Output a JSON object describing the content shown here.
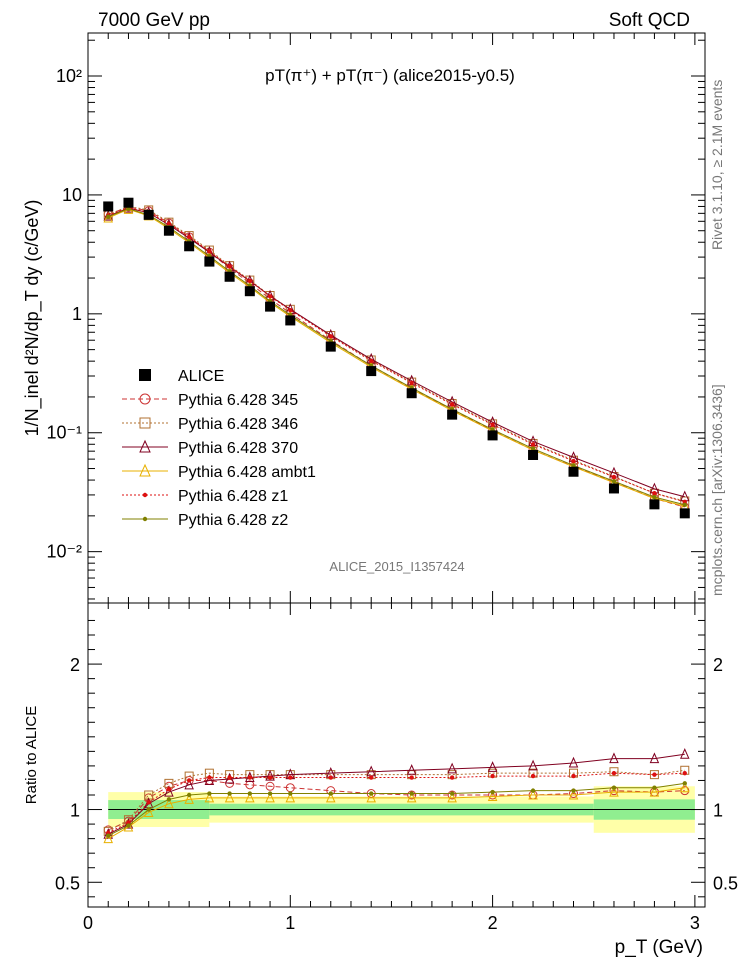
{
  "header": {
    "left": "7000 GeV pp",
    "right": "Soft QCD"
  },
  "side_labels": {
    "top": "Rivet 3.1.10, ≥ 2.1M events",
    "bottom": "mcplots.cern.ch [arXiv:1306.3436]"
  },
  "watermark": "ALICE_2015_I1357424",
  "chart_data": {
    "type": "scatter",
    "title": "pT(π⁺) + pT(π⁻) (alice2015-y0.5)",
    "xlabel": "p_T (GeV)",
    "ylabel": "1/N_inel d²N/dp_T dy (c/GeV)",
    "ratio_ylabel": "Ratio to ALICE",
    "xlim": [
      0,
      3.05
    ],
    "ylim": [
      0.0037,
      230
    ],
    "yscale": "log",
    "ratio_ylim": [
      0.33,
      2.42
    ],
    "x_ticks": [
      "0",
      "1",
      "2",
      "3"
    ],
    "y_ticks": [
      "10⁻²",
      "10⁻¹",
      "1",
      "10",
      "10²"
    ],
    "ratio_ticks": [
      "0.5",
      "1",
      "2"
    ],
    "legend_position": "left-middle",
    "x": [
      0.1,
      0.2,
      0.3,
      0.4,
      0.5,
      0.6,
      0.7,
      0.8,
      0.9,
      1.0,
      1.2,
      1.4,
      1.6,
      1.8,
      2.0,
      2.2,
      2.4,
      2.6,
      2.8,
      2.95
    ],
    "data": {
      "name": "ALICE",
      "values": [
        8.0,
        8.6,
        6.8,
        5.0,
        3.7,
        2.75,
        2.05,
        1.55,
        1.15,
        0.88,
        0.53,
        0.33,
        0.215,
        0.142,
        0.095,
        0.065,
        0.047,
        0.034,
        0.025,
        0.021
      ]
    },
    "band_edges": [
      0.1,
      0.6,
      2.5,
      3.0
    ],
    "band_inner": [
      0.065,
      0.04,
      0.07
    ],
    "band_outer": [
      0.12,
      0.09,
      0.16
    ],
    "series": [
      {
        "name": "Pythia 6.428 345",
        "color": "#cc3333",
        "marker": "circle",
        "dash": "5,3",
        "ratios": [
          0.86,
          0.92,
          1.08,
          1.16,
          1.2,
          1.2,
          1.18,
          1.17,
          1.16,
          1.15,
          1.13,
          1.11,
          1.1,
          1.1,
          1.1,
          1.1,
          1.11,
          1.13,
          1.12,
          1.13
        ]
      },
      {
        "name": "Pythia 6.428 346",
        "color": "#b07030",
        "marker": "square",
        "dash": "2,2",
        "ratios": [
          0.85,
          0.93,
          1.1,
          1.18,
          1.23,
          1.25,
          1.24,
          1.24,
          1.24,
          1.24,
          1.24,
          1.24,
          1.24,
          1.24,
          1.25,
          1.25,
          1.25,
          1.26,
          1.24,
          1.27
        ]
      },
      {
        "name": "Pythia 6.428 370",
        "color": "#800020",
        "marker": "triangle",
        "dash": "",
        "ratios": [
          0.83,
          0.9,
          1.04,
          1.12,
          1.17,
          1.2,
          1.21,
          1.22,
          1.23,
          1.24,
          1.25,
          1.26,
          1.27,
          1.28,
          1.29,
          1.3,
          1.32,
          1.35,
          1.35,
          1.38
        ]
      },
      {
        "name": "Pythia 6.428 ambt1",
        "color": "#e8b000",
        "marker": "triangle",
        "dash": "",
        "ratios": [
          0.8,
          0.88,
          0.98,
          1.04,
          1.07,
          1.08,
          1.08,
          1.08,
          1.08,
          1.08,
          1.08,
          1.08,
          1.08,
          1.08,
          1.09,
          1.1,
          1.1,
          1.12,
          1.12,
          1.15
        ]
      },
      {
        "name": "Pythia 6.428 z1",
        "color": "#dd1111",
        "marker": "dot",
        "dash": "2,2",
        "ratios": [
          0.84,
          0.91,
          1.05,
          1.14,
          1.2,
          1.22,
          1.22,
          1.22,
          1.22,
          1.22,
          1.22,
          1.22,
          1.22,
          1.22,
          1.23,
          1.23,
          1.23,
          1.25,
          1.24,
          1.25
        ]
      },
      {
        "name": "Pythia 6.428 z2",
        "color": "#808000",
        "marker": "dot",
        "dash": "",
        "ratios": [
          0.82,
          0.89,
          1.0,
          1.07,
          1.1,
          1.11,
          1.11,
          1.11,
          1.11,
          1.11,
          1.11,
          1.11,
          1.11,
          1.11,
          1.12,
          1.13,
          1.13,
          1.15,
          1.15,
          1.18
        ]
      }
    ]
  }
}
